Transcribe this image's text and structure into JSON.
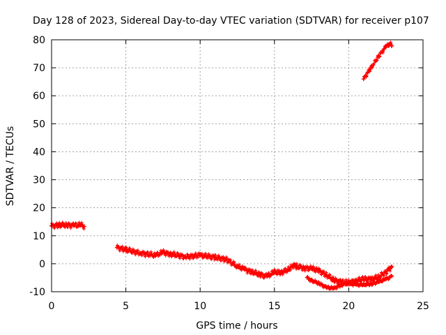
{
  "chart_data": {
    "type": "scatter",
    "title": "Day 128 of 2023, Sidereal Day-to-day VTEC variation (SDTVAR) for receiver p107",
    "xlabel": "GPS time / hours",
    "ylabel": "SDTVAR / TECUs",
    "xlim": [
      0,
      25
    ],
    "ylim": [
      -10,
      80
    ],
    "xticks": [
      "0",
      "5",
      "10",
      "15",
      "20",
      "25"
    ],
    "yticks": [
      "-10",
      "0",
      "10",
      "20",
      "30",
      "40",
      "50",
      "60",
      "70",
      "80"
    ],
    "grid": true,
    "marker": "+",
    "color": "#ff0000",
    "series": [
      {
        "name": "track-1",
        "band": 2.0,
        "points": [
          [
            0.0,
            13.5
          ],
          [
            0.5,
            13.8
          ],
          [
            1.0,
            13.8
          ],
          [
            1.5,
            13.7
          ],
          [
            2.0,
            13.8
          ],
          [
            2.2,
            13.3
          ]
        ]
      },
      {
        "name": "track-2",
        "band": 2.0,
        "points": [
          [
            4.4,
            5.8
          ],
          [
            5.0,
            5.0
          ],
          [
            6.0,
            3.8
          ],
          [
            7.0,
            3.0
          ],
          [
            7.5,
            4.0
          ],
          [
            8.0,
            3.5
          ],
          [
            9.0,
            2.5
          ],
          [
            10.0,
            3.0
          ],
          [
            11.0,
            2.3
          ],
          [
            11.8,
            1.5
          ],
          [
            12.5,
            -1.0
          ],
          [
            13.0,
            -2.0
          ],
          [
            13.5,
            -3.0
          ],
          [
            14.0,
            -3.8
          ],
          [
            14.5,
            -4.5
          ],
          [
            15.0,
            -3.0
          ],
          [
            15.5,
            -3.0
          ],
          [
            16.0,
            -2.0
          ],
          [
            16.3,
            -0.5
          ],
          [
            16.5,
            -1.0
          ],
          [
            17.0,
            -1.5
          ],
          [
            17.5,
            -1.8
          ],
          [
            18.0,
            -2.5
          ],
          [
            18.5,
            -4.0
          ],
          [
            19.0,
            -5.8
          ],
          [
            19.5,
            -6.5
          ],
          [
            20.0,
            -6.8
          ],
          [
            20.5,
            -6.0
          ],
          [
            21.0,
            -5.5
          ],
          [
            21.5,
            -5.5
          ],
          [
            22.0,
            -4.8
          ],
          [
            22.5,
            -3.0
          ],
          [
            22.9,
            -1.0
          ]
        ]
      },
      {
        "name": "track-3",
        "band": 1.2,
        "points": [
          [
            17.2,
            -5.0
          ],
          [
            17.5,
            -6.0
          ],
          [
            18.0,
            -7.0
          ],
          [
            18.5,
            -8.5
          ],
          [
            19.0,
            -8.8
          ],
          [
            19.5,
            -7.5
          ],
          [
            20.0,
            -7.0
          ],
          [
            20.5,
            -7.5
          ],
          [
            21.0,
            -7.5
          ],
          [
            21.5,
            -7.2
          ],
          [
            22.0,
            -6.5
          ],
          [
            22.5,
            -5.5
          ],
          [
            22.9,
            -4.5
          ]
        ]
      },
      {
        "name": "track-4",
        "band": 1.5,
        "points": [
          [
            21.0,
            66.0
          ],
          [
            21.5,
            70.0
          ],
          [
            22.0,
            74.0
          ],
          [
            22.5,
            77.5
          ],
          [
            22.8,
            78.5
          ],
          [
            22.9,
            77.8
          ]
        ]
      }
    ]
  }
}
